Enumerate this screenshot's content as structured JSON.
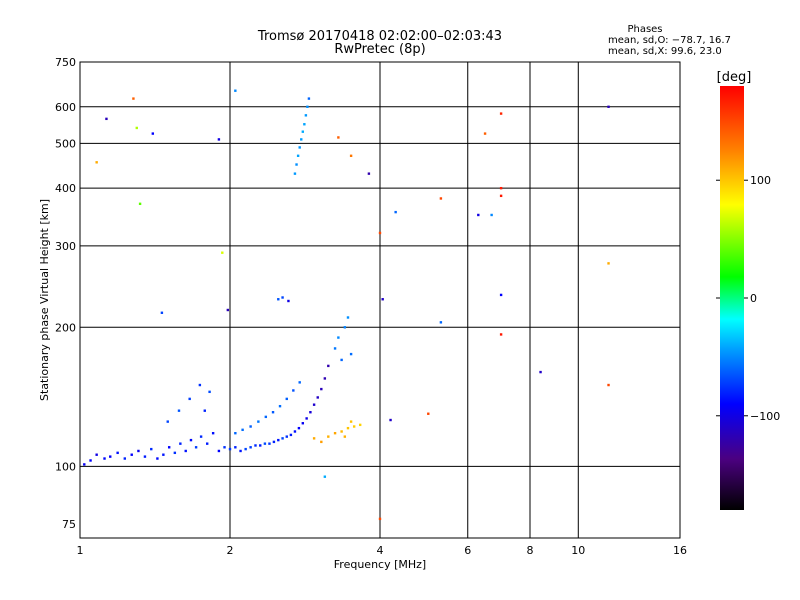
{
  "header": {
    "title_line1": "Tromsø 20170418 02:02:00–02:03:43",
    "title_line2": "RwPretec (8p)"
  },
  "stats": {
    "label": "Phases",
    "line1": "mean, sd,O: −78.7, 16.7",
    "line2": "mean, sd,X:  99.6, 23.0"
  },
  "colorbar": {
    "unit": "[deg]",
    "range": [
      -180,
      180
    ],
    "ticks": [
      "100",
      "0",
      "−100"
    ],
    "tick_values": [
      100,
      0,
      -100
    ]
  },
  "chart_data": {
    "type": "scatter",
    "xlabel": "Frequency [MHz]",
    "ylabel": "Stationary phase Virtual Height [km]",
    "xscale": "log",
    "yscale": "log",
    "xlim": [
      1,
      16
    ],
    "ylim": [
      70,
      750
    ],
    "xticks": [
      1,
      2,
      4,
      6,
      8,
      10,
      16
    ],
    "yticks": [
      75,
      100,
      200,
      300,
      400,
      500,
      600,
      750
    ],
    "grid": true,
    "points": [
      {
        "x": 1.02,
        "y": 101,
        "phase": -95
      },
      {
        "x": 1.05,
        "y": 103,
        "phase": -90
      },
      {
        "x": 1.08,
        "y": 106,
        "phase": -100
      },
      {
        "x": 1.12,
        "y": 104,
        "phase": -88
      },
      {
        "x": 1.15,
        "y": 105,
        "phase": -92
      },
      {
        "x": 1.19,
        "y": 107,
        "phase": -85
      },
      {
        "x": 1.23,
        "y": 104,
        "phase": -80
      },
      {
        "x": 1.27,
        "y": 106,
        "phase": -90
      },
      {
        "x": 1.31,
        "y": 108,
        "phase": -95
      },
      {
        "x": 1.35,
        "y": 105,
        "phase": -82
      },
      {
        "x": 1.39,
        "y": 109,
        "phase": -78
      },
      {
        "x": 1.43,
        "y": 104,
        "phase": -88
      },
      {
        "x": 1.47,
        "y": 106,
        "phase": -84
      },
      {
        "x": 1.51,
        "y": 110,
        "phase": -90
      },
      {
        "x": 1.55,
        "y": 107,
        "phase": -76
      },
      {
        "x": 1.59,
        "y": 112,
        "phase": -80
      },
      {
        "x": 1.63,
        "y": 108,
        "phase": -85
      },
      {
        "x": 1.67,
        "y": 114,
        "phase": -88
      },
      {
        "x": 1.71,
        "y": 110,
        "phase": -72
      },
      {
        "x": 1.75,
        "y": 116,
        "phase": -78
      },
      {
        "x": 1.8,
        "y": 112,
        "phase": -82
      },
      {
        "x": 1.85,
        "y": 118,
        "phase": -86
      },
      {
        "x": 1.9,
        "y": 108,
        "phase": -90
      },
      {
        "x": 1.95,
        "y": 110,
        "phase": -76
      },
      {
        "x": 2.0,
        "y": 109,
        "phase": -74
      },
      {
        "x": 2.05,
        "y": 110,
        "phase": -80
      },
      {
        "x": 2.1,
        "y": 108,
        "phase": -84
      },
      {
        "x": 2.15,
        "y": 109,
        "phase": -70
      },
      {
        "x": 2.2,
        "y": 110,
        "phase": -72
      },
      {
        "x": 2.25,
        "y": 111,
        "phase": -78
      },
      {
        "x": 2.3,
        "y": 111,
        "phase": -82
      },
      {
        "x": 2.35,
        "y": 112,
        "phase": -68
      },
      {
        "x": 2.4,
        "y": 112,
        "phase": -74
      },
      {
        "x": 2.45,
        "y": 113,
        "phase": -80
      },
      {
        "x": 2.5,
        "y": 114,
        "phase": -84
      },
      {
        "x": 2.55,
        "y": 115,
        "phase": -70
      },
      {
        "x": 2.6,
        "y": 116,
        "phase": -76
      },
      {
        "x": 2.65,
        "y": 117,
        "phase": -82
      },
      {
        "x": 2.7,
        "y": 119,
        "phase": -86
      },
      {
        "x": 2.75,
        "y": 121,
        "phase": -90
      },
      {
        "x": 2.8,
        "y": 124,
        "phase": -94
      },
      {
        "x": 2.85,
        "y": 127,
        "phase": -98
      },
      {
        "x": 2.9,
        "y": 131,
        "phase": -104
      },
      {
        "x": 2.95,
        "y": 136,
        "phase": -108
      },
      {
        "x": 3.0,
        "y": 141,
        "phase": -112
      },
      {
        "x": 3.05,
        "y": 147,
        "phase": -115
      },
      {
        "x": 3.1,
        "y": 155,
        "phase": -118
      },
      {
        "x": 3.15,
        "y": 165,
        "phase": -120
      },
      {
        "x": 2.05,
        "y": 118,
        "phase": -60
      },
      {
        "x": 2.12,
        "y": 120,
        "phase": -58
      },
      {
        "x": 2.2,
        "y": 122,
        "phase": -62
      },
      {
        "x": 2.28,
        "y": 125,
        "phase": -55
      },
      {
        "x": 2.36,
        "y": 128,
        "phase": -60
      },
      {
        "x": 2.44,
        "y": 131,
        "phase": -64
      },
      {
        "x": 2.52,
        "y": 135,
        "phase": -58
      },
      {
        "x": 2.6,
        "y": 140,
        "phase": -62
      },
      {
        "x": 2.68,
        "y": 146,
        "phase": -66
      },
      {
        "x": 2.76,
        "y": 152,
        "phase": -60
      },
      {
        "x": 1.5,
        "y": 125,
        "phase": -70
      },
      {
        "x": 1.58,
        "y": 132,
        "phase": -65
      },
      {
        "x": 1.66,
        "y": 140,
        "phase": -72
      },
      {
        "x": 1.74,
        "y": 150,
        "phase": -76
      },
      {
        "x": 1.82,
        "y": 145,
        "phase": -68
      },
      {
        "x": 1.78,
        "y": 132,
        "phase": -80
      },
      {
        "x": 2.95,
        "y": 115,
        "phase": 110
      },
      {
        "x": 3.05,
        "y": 113,
        "phase": 115
      },
      {
        "x": 3.15,
        "y": 116,
        "phase": 108
      },
      {
        "x": 3.25,
        "y": 118,
        "phase": 112
      },
      {
        "x": 3.35,
        "y": 119,
        "phase": 105
      },
      {
        "x": 3.45,
        "y": 121,
        "phase": 100
      },
      {
        "x": 3.55,
        "y": 122,
        "phase": 98
      },
      {
        "x": 3.65,
        "y": 123,
        "phase": 95
      },
      {
        "x": 3.5,
        "y": 125,
        "phase": 102
      },
      {
        "x": 3.4,
        "y": 116,
        "phase": 108
      },
      {
        "x": 3.25,
        "y": 180,
        "phase": -55
      },
      {
        "x": 3.3,
        "y": 190,
        "phase": -50
      },
      {
        "x": 3.4,
        "y": 200,
        "phase": -52
      },
      {
        "x": 3.45,
        "y": 210,
        "phase": -48
      },
      {
        "x": 3.5,
        "y": 175,
        "phase": -58
      },
      {
        "x": 3.35,
        "y": 170,
        "phase": -60
      },
      {
        "x": 2.7,
        "y": 430,
        "phase": -45
      },
      {
        "x": 2.72,
        "y": 450,
        "phase": -48
      },
      {
        "x": 2.74,
        "y": 470,
        "phase": -42
      },
      {
        "x": 2.76,
        "y": 490,
        "phase": -46
      },
      {
        "x": 2.78,
        "y": 510,
        "phase": -44
      },
      {
        "x": 2.8,
        "y": 530,
        "phase": -40
      },
      {
        "x": 2.82,
        "y": 550,
        "phase": -42
      },
      {
        "x": 2.84,
        "y": 575,
        "phase": -45
      },
      {
        "x": 2.86,
        "y": 600,
        "phase": -48
      },
      {
        "x": 2.88,
        "y": 625,
        "phase": -60
      },
      {
        "x": 2.5,
        "y": 230,
        "phase": -65
      },
      {
        "x": 2.55,
        "y": 232,
        "phase": -70
      },
      {
        "x": 2.62,
        "y": 228,
        "phase": -100
      },
      {
        "x": 1.13,
        "y": 565,
        "phase": -115
      },
      {
        "x": 1.28,
        "y": 625,
        "phase": 140
      },
      {
        "x": 1.3,
        "y": 540,
        "phase": 60
      },
      {
        "x": 1.32,
        "y": 370,
        "phase": 40
      },
      {
        "x": 1.4,
        "y": 525,
        "phase": -90
      },
      {
        "x": 1.46,
        "y": 215,
        "phase": -70
      },
      {
        "x": 1.9,
        "y": 510,
        "phase": -100
      },
      {
        "x": 1.93,
        "y": 290,
        "phase": 70
      },
      {
        "x": 1.98,
        "y": 218,
        "phase": -115
      },
      {
        "x": 2.05,
        "y": 650,
        "phase": -50
      },
      {
        "x": 3.3,
        "y": 515,
        "phase": 140
      },
      {
        "x": 3.5,
        "y": 470,
        "phase": 130
      },
      {
        "x": 3.8,
        "y": 430,
        "phase": -120
      },
      {
        "x": 4.0,
        "y": 320,
        "phase": 150
      },
      {
        "x": 4.05,
        "y": 230,
        "phase": -110
      },
      {
        "x": 4.3,
        "y": 355,
        "phase": -60
      },
      {
        "x": 5.3,
        "y": 380,
        "phase": 150
      },
      {
        "x": 5.3,
        "y": 205,
        "phase": -60
      },
      {
        "x": 6.3,
        "y": 350,
        "phase": -100
      },
      {
        "x": 6.5,
        "y": 525,
        "phase": 140
      },
      {
        "x": 6.7,
        "y": 350,
        "phase": -50
      },
      {
        "x": 7.0,
        "y": 400,
        "phase": 170
      },
      {
        "x": 7.0,
        "y": 385,
        "phase": 170
      },
      {
        "x": 7.0,
        "y": 580,
        "phase": 165
      },
      {
        "x": 7.0,
        "y": 235,
        "phase": -90
      },
      {
        "x": 7.0,
        "y": 193,
        "phase": 170
      },
      {
        "x": 8.4,
        "y": 160,
        "phase": -110
      },
      {
        "x": 11.5,
        "y": 600,
        "phase": -115
      },
      {
        "x": 11.5,
        "y": 275,
        "phase": 110
      },
      {
        "x": 11.5,
        "y": 150,
        "phase": 150
      },
      {
        "x": 4.0,
        "y": 77,
        "phase": 150
      },
      {
        "x": 3.1,
        "y": 95,
        "phase": -40
      },
      {
        "x": 5.0,
        "y": 130,
        "phase": 150
      },
      {
        "x": 4.2,
        "y": 126,
        "phase": -110
      },
      {
        "x": 1.08,
        "y": 455,
        "phase": 110
      }
    ]
  }
}
